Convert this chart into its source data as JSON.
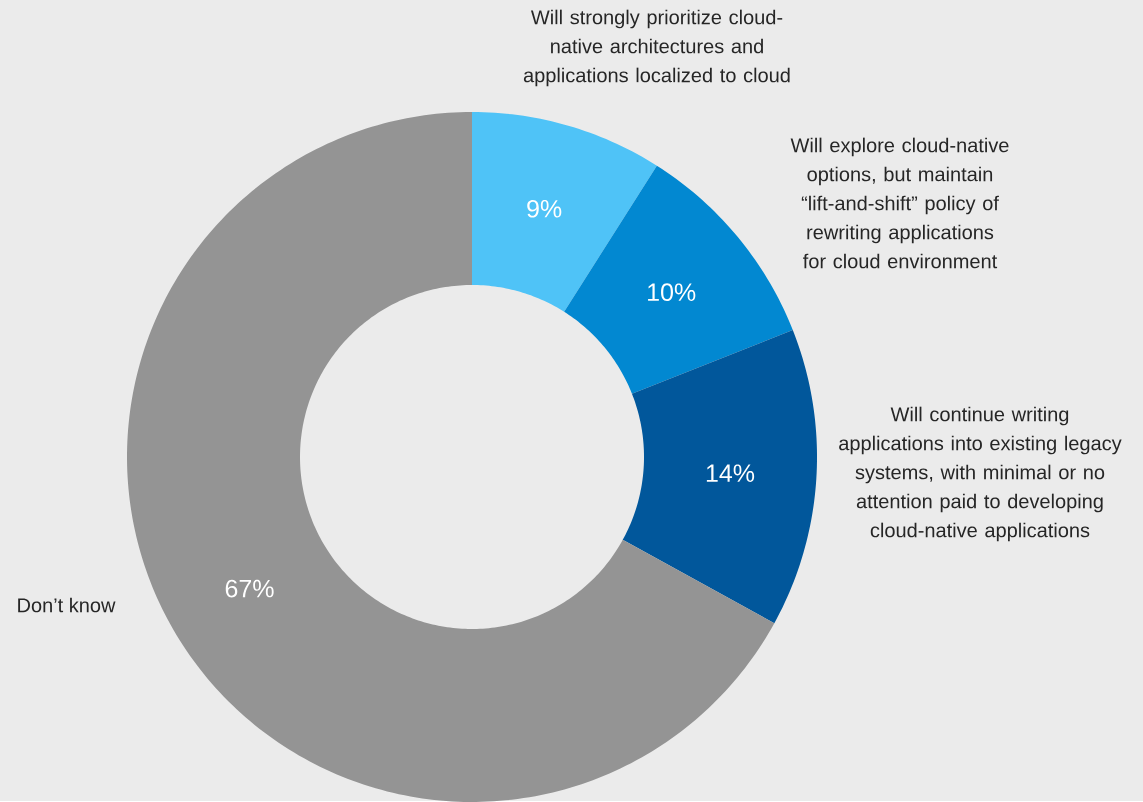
{
  "chart_data": {
    "type": "donut",
    "categories": [
      "Will strongly prioritize cloud-native architectures and applications localized to cloud",
      "Will explore cloud-native options, but maintain “lift-and-shift” policy of rewriting applications for cloud environment",
      "Will continue writing applications into existing legacy systems, with minimal or no attention paid to developing cloud-native applications",
      "Don’t know"
    ],
    "values": [
      9,
      10,
      14,
      67
    ],
    "value_labels": [
      "9%",
      "10%",
      "14%",
      "67%"
    ],
    "colors": [
      "#4fc3f7",
      "#0288d1",
      "#01579b",
      "#949494"
    ]
  }
}
